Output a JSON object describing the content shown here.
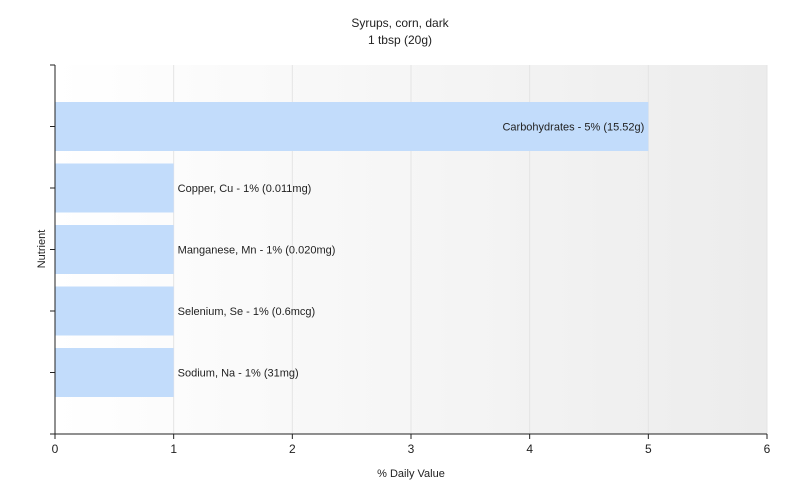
{
  "chart_data": {
    "type": "bar",
    "orientation": "horizontal",
    "title": "Syrups, corn, dark",
    "subtitle": "1 tbsp (20g)",
    "xlabel": "% Daily Value",
    "ylabel": "Nutrient",
    "xlim": [
      0,
      6
    ],
    "xticks": [
      "0",
      "1",
      "2",
      "3",
      "4",
      "5",
      "6"
    ],
    "grid": true,
    "bar_color": "#c2dcfb",
    "categories": [
      "Carbohydrates",
      "Copper, Cu",
      "Manganese, Mn",
      "Selenium, Se",
      "Sodium, Na"
    ],
    "values": [
      5,
      1,
      1,
      1,
      1
    ],
    "labels": [
      "Carbohydrates - 5% (15.52g)",
      "Copper, Cu - 1% (0.011mg)",
      "Manganese, Mn - 1% (0.020mg)",
      "Selenium, Se - 1% (0.6mcg)",
      "Sodium, Na - 1% (31mg)"
    ]
  }
}
